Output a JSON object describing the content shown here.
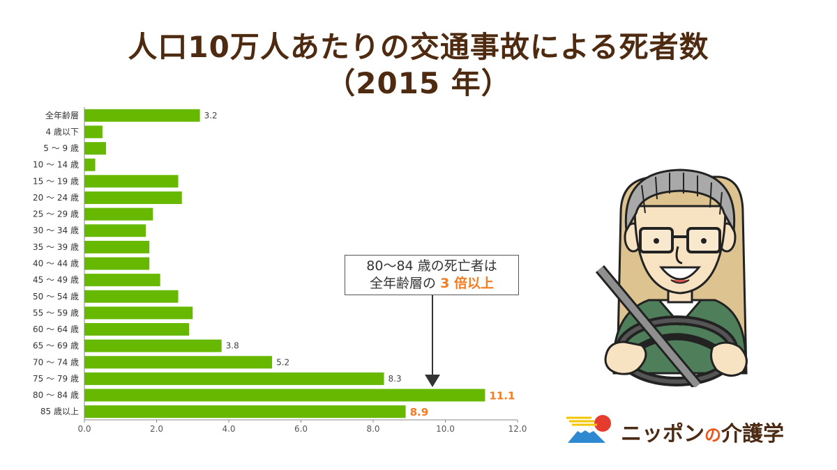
{
  "title": {
    "line1": "人口10万人あたりの交通事故による死者数",
    "line2": "（2015 年）"
  },
  "chart_data": {
    "type": "bar",
    "orientation": "horizontal",
    "categories": [
      "全年齢層",
      "4 歳以下",
      "5 ～ 9 歳",
      "10 ～ 14 歳",
      "15 ～ 19 歳",
      "20 ～ 24 歳",
      "25 ～ 29 歳",
      "30 ～ 34 歳",
      "35 ～ 39 歳",
      "40 ～ 44 歳",
      "45 ～ 49 歳",
      "50 ～ 54 歳",
      "55 ～ 59 歳",
      "60 ～ 64 歳",
      "65 ～ 69 歳",
      "70 ～ 74 歳",
      "75 ～ 79 歳",
      "80 ～ 84 歳",
      "85 歳以上"
    ],
    "values": [
      3.2,
      0.5,
      0.6,
      0.3,
      2.6,
      2.7,
      1.9,
      1.7,
      1.8,
      1.8,
      2.1,
      2.6,
      3.0,
      2.9,
      3.8,
      5.2,
      8.3,
      11.1,
      8.9
    ],
    "value_labels": [
      "3.2",
      "",
      "",
      "",
      "",
      "",
      "",
      "",
      "",
      "",
      "",
      "",
      "",
      "",
      "3.8",
      "5.2",
      "8.3",
      "11.1",
      "8.9"
    ],
    "highlight_labels": [
      false,
      false,
      false,
      false,
      false,
      false,
      false,
      false,
      false,
      false,
      false,
      false,
      false,
      false,
      false,
      false,
      false,
      true,
      true
    ],
    "xlim": [
      0,
      12
    ],
    "xticks": [
      "0.0",
      "2.0",
      "4.0",
      "6.0",
      "8.0",
      "10.0",
      "12.0"
    ],
    "grid": false,
    "bar_color": "#66b800",
    "highlight_color": "#f47b20",
    "title": "",
    "xlabel": "",
    "ylabel": ""
  },
  "callout": {
    "line1": "80～84 歳の死亡者は",
    "line2_prefix": "全年齢層の",
    "line2_highlight": "3 倍以上"
  },
  "logo": {
    "part1": "ニッポン",
    "part2": "の",
    "part3": "介護学"
  },
  "colors": {
    "title": "#4e2a10",
    "accent": "#f47b20",
    "bar": "#66b800"
  },
  "illustration": {
    "subject": "elderly man with glasses smiling and holding a steering wheel"
  }
}
